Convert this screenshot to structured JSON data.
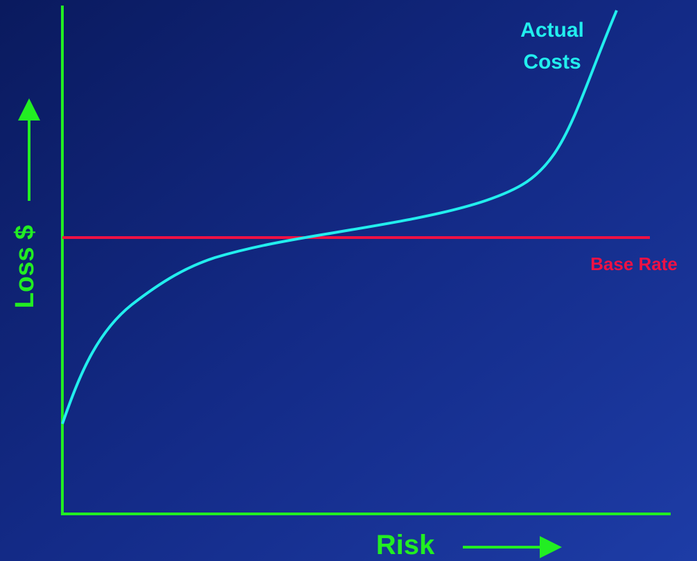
{
  "y_axis_label": "Loss $",
  "x_axis_label": "Risk",
  "curve_label": {
    "line1": "Actual",
    "line2": "Costs"
  },
  "base_line_label": "Base Rate"
}
